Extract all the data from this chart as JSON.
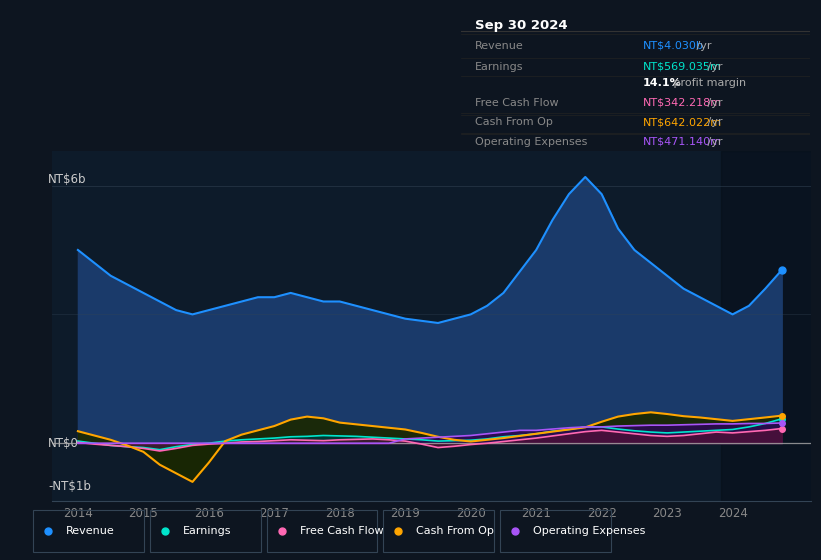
{
  "bg_color": "#0d1520",
  "plot_bg_color": "#0d1b2a",
  "title_date": "Sep 30 2024",
  "info_box_rows": [
    {
      "label": "Revenue",
      "value": "NT$4.030b",
      "suffix": " /yr",
      "color": "#1e90ff"
    },
    {
      "label": "Earnings",
      "value": "NT$569.035m",
      "suffix": " /yr",
      "color": "#00e5cc"
    },
    {
      "label": "",
      "value": "14.1%",
      "suffix": " profit margin",
      "color": "white"
    },
    {
      "label": "Free Cash Flow",
      "value": "NT$342.218m",
      "suffix": " /yr",
      "color": "#ff69b4"
    },
    {
      "label": "Cash From Op",
      "value": "NT$642.022m",
      "suffix": " /yr",
      "color": "#ffa500"
    },
    {
      "label": "Operating Expenses",
      "value": "NT$471.140m",
      "suffix": " /yr",
      "color": "#a855f7"
    }
  ],
  "ylabel_top": "NT$6b",
  "ylabel_zero": "NT$0",
  "ylabel_neg": "-NT$1b",
  "years": [
    2014.0,
    2014.25,
    2014.5,
    2014.75,
    2015.0,
    2015.25,
    2015.5,
    2015.75,
    2016.0,
    2016.25,
    2016.5,
    2016.75,
    2017.0,
    2017.25,
    2017.5,
    2017.75,
    2018.0,
    2018.25,
    2018.5,
    2018.75,
    2019.0,
    2019.25,
    2019.5,
    2019.75,
    2020.0,
    2020.25,
    2020.5,
    2020.75,
    2021.0,
    2021.25,
    2021.5,
    2021.75,
    2022.0,
    2022.25,
    2022.5,
    2022.75,
    2023.0,
    2023.25,
    2023.5,
    2023.75,
    2024.0,
    2024.25,
    2024.5,
    2024.75
  ],
  "revenue": [
    4.5,
    4.2,
    3.9,
    3.7,
    3.5,
    3.3,
    3.1,
    3.0,
    3.1,
    3.2,
    3.3,
    3.4,
    3.4,
    3.5,
    3.4,
    3.3,
    3.3,
    3.2,
    3.1,
    3.0,
    2.9,
    2.85,
    2.8,
    2.9,
    3.0,
    3.2,
    3.5,
    4.0,
    4.5,
    5.2,
    5.8,
    6.2,
    5.8,
    5.0,
    4.5,
    4.2,
    3.9,
    3.6,
    3.4,
    3.2,
    3.0,
    3.2,
    3.6,
    4.03
  ],
  "earnings": [
    0.05,
    0.0,
    -0.05,
    -0.08,
    -0.1,
    -0.15,
    -0.08,
    -0.03,
    0.0,
    0.05,
    0.08,
    0.1,
    0.12,
    0.15,
    0.16,
    0.18,
    0.17,
    0.16,
    0.14,
    0.12,
    0.1,
    0.08,
    0.05,
    0.06,
    0.07,
    0.1,
    0.15,
    0.18,
    0.22,
    0.28,
    0.32,
    0.38,
    0.38,
    0.33,
    0.29,
    0.26,
    0.24,
    0.26,
    0.28,
    0.3,
    0.32,
    0.38,
    0.46,
    0.569
  ],
  "free_cash_flow": [
    0.02,
    -0.02,
    -0.05,
    -0.08,
    -0.12,
    -0.18,
    -0.12,
    -0.05,
    -0.02,
    0.0,
    0.03,
    0.04,
    0.06,
    0.08,
    0.07,
    0.06,
    0.08,
    0.09,
    0.1,
    0.08,
    0.05,
    -0.02,
    -0.1,
    -0.07,
    -0.03,
    0.0,
    0.04,
    0.08,
    0.12,
    0.17,
    0.22,
    0.27,
    0.3,
    0.26,
    0.22,
    0.18,
    0.16,
    0.18,
    0.22,
    0.26,
    0.24,
    0.27,
    0.3,
    0.342
  ],
  "cash_from_op": [
    0.28,
    0.18,
    0.08,
    -0.05,
    -0.2,
    -0.5,
    -0.7,
    -0.9,
    -0.45,
    0.05,
    0.2,
    0.3,
    0.4,
    0.55,
    0.62,
    0.58,
    0.48,
    0.44,
    0.4,
    0.36,
    0.32,
    0.24,
    0.15,
    0.08,
    0.04,
    0.08,
    0.12,
    0.17,
    0.22,
    0.27,
    0.32,
    0.37,
    0.5,
    0.62,
    0.68,
    0.72,
    0.68,
    0.63,
    0.6,
    0.56,
    0.52,
    0.56,
    0.6,
    0.642
  ],
  "operating_expenses": [
    0.0,
    0.0,
    0.0,
    0.0,
    0.0,
    0.0,
    0.0,
    0.0,
    0.0,
    0.0,
    0.0,
    0.0,
    0.0,
    0.0,
    0.0,
    0.0,
    0.0,
    0.0,
    0.0,
    0.0,
    0.1,
    0.12,
    0.14,
    0.16,
    0.18,
    0.22,
    0.26,
    0.3,
    0.3,
    0.33,
    0.36,
    0.38,
    0.38,
    0.4,
    0.41,
    0.42,
    0.42,
    0.43,
    0.44,
    0.45,
    0.45,
    0.46,
    0.46,
    0.471
  ],
  "revenue_color": "#1e90ff",
  "revenue_fill": "#1a3a6a",
  "earnings_color": "#00e5cc",
  "earnings_fill": "#003838",
  "fcf_color": "#ff69b4",
  "fcf_fill": "#5a1030",
  "cfo_color": "#ffa500",
  "cfo_fill": "#2a2000",
  "opex_color": "#a855f7",
  "opex_fill": "#2a0a50",
  "legend_items": [
    "Revenue",
    "Earnings",
    "Free Cash Flow",
    "Cash From Op",
    "Operating Expenses"
  ],
  "legend_colors": [
    "#1e90ff",
    "#00e5cc",
    "#ff69b4",
    "#ffa500",
    "#a855f7"
  ],
  "x_ticks": [
    2014,
    2015,
    2016,
    2017,
    2018,
    2019,
    2020,
    2021,
    2022,
    2023,
    2024
  ],
  "ylim": [
    -1.35,
    6.8
  ],
  "dark_overlay_start": 2023.83
}
